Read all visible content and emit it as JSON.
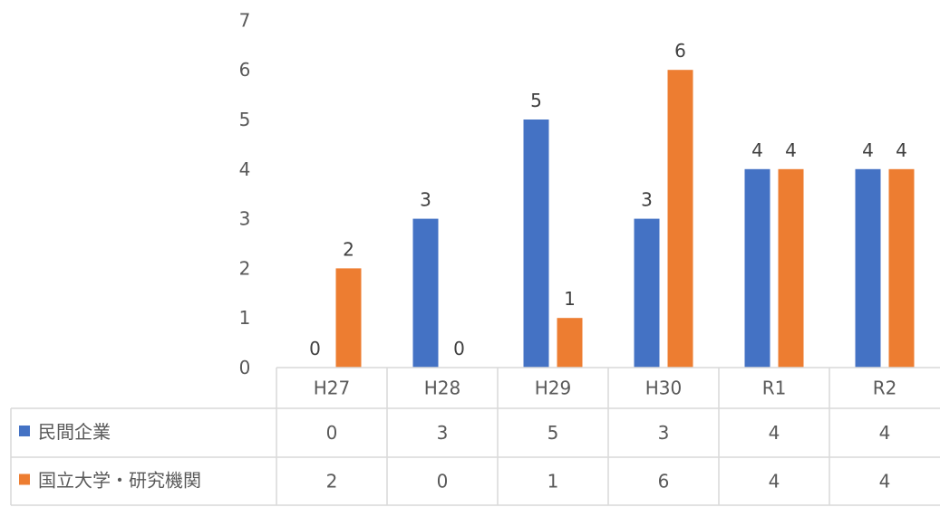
{
  "chart_data": {
    "type": "bar",
    "categories": [
      "H27",
      "H28",
      "H29",
      "H30",
      "R1",
      "R2"
    ],
    "series": [
      {
        "name": "民間企業",
        "values": [
          0,
          3,
          5,
          3,
          4,
          4
        ],
        "color": "#4472C4"
      },
      {
        "name": "国立大学・研究機関",
        "values": [
          2,
          0,
          1,
          6,
          4,
          4
        ],
        "color": "#ED7D31"
      }
    ],
    "ylim": [
      0,
      7
    ],
    "yticks": [
      0,
      1,
      2,
      3,
      4,
      5,
      6,
      7
    ],
    "title": "",
    "xlabel": "",
    "ylabel": "",
    "data_table": true,
    "grid": false
  }
}
